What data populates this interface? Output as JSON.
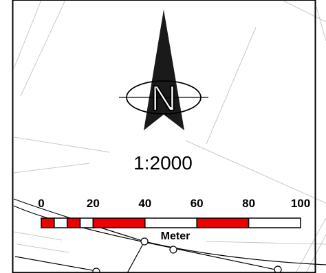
{
  "map": {
    "scale_ratio": "1:2000",
    "north_letter": "N",
    "unit": "Meter",
    "scale_bar": {
      "ticks": [
        "0",
        "20",
        "40",
        "60",
        "80",
        "100"
      ],
      "segments": [
        {
          "from": 0,
          "to": 5,
          "fill": "red"
        },
        {
          "from": 5,
          "to": 10,
          "fill": "white"
        },
        {
          "from": 10,
          "to": 15,
          "fill": "red"
        },
        {
          "from": 15,
          "to": 20,
          "fill": "white"
        },
        {
          "from": 20,
          "to": 40,
          "fill": "red"
        },
        {
          "from": 40,
          "to": 60,
          "fill": "white"
        },
        {
          "from": 60,
          "to": 80,
          "fill": "red"
        },
        {
          "from": 80,
          "to": 100,
          "fill": "white"
        }
      ]
    },
    "colors": {
      "scale_red": "#ee0000",
      "arrow": "#1a1a1a",
      "background_lines": "#c8c8c8",
      "parcel_lines": "#000000"
    }
  }
}
